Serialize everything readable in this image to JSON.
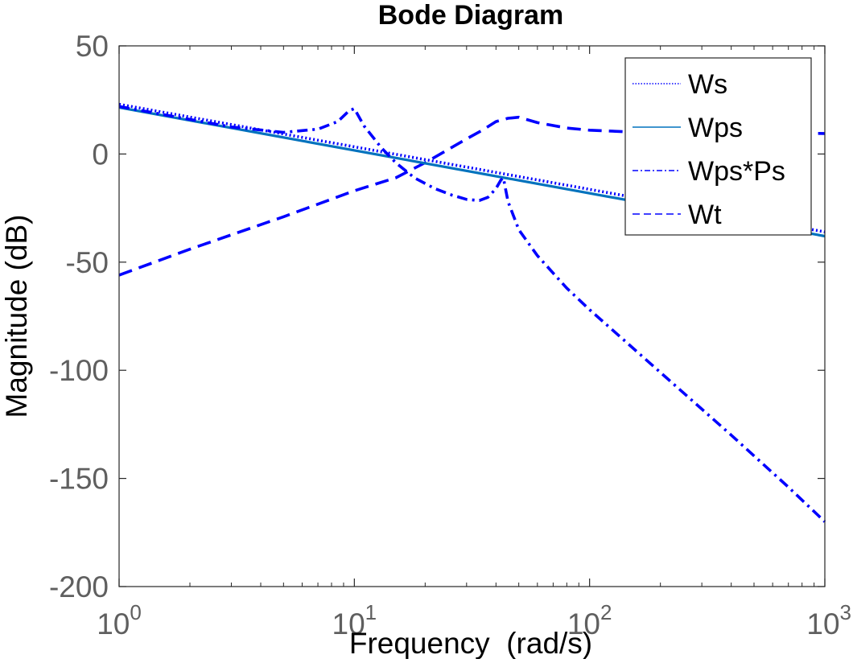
{
  "chart_data": {
    "type": "line",
    "title": "Bode Diagram",
    "xlabel": "Frequency  (rad/s)",
    "ylabel": "Magnitude (dB)",
    "xscale": "log",
    "xlim": [
      1,
      1000
    ],
    "ylim": [
      -200,
      50
    ],
    "grid": false,
    "legend_position": "top-right",
    "x_ticks": [
      {
        "value": 1,
        "base": "10",
        "exp": "0"
      },
      {
        "value": 10,
        "base": "10",
        "exp": "1"
      },
      {
        "value": 100,
        "base": "10",
        "exp": "2"
      },
      {
        "value": 1000,
        "base": "10",
        "exp": "3"
      }
    ],
    "y_ticks": [
      {
        "value": 50,
        "label": "50"
      },
      {
        "value": 0,
        "label": "0"
      },
      {
        "value": -50,
        "label": "-50"
      },
      {
        "value": -100,
        "label": "-100"
      },
      {
        "value": -150,
        "label": "-150"
      },
      {
        "value": -200,
        "label": "-200"
      }
    ],
    "series": [
      {
        "name": "Ws",
        "color": "#0000ff",
        "style": "dotted",
        "x": [
          1,
          1000
        ],
        "y": [
          23,
          -36
        ]
      },
      {
        "name": "Wps",
        "color": "#0072bd",
        "style": "solid",
        "x": [
          1,
          1000
        ],
        "y": [
          21.5,
          -38
        ]
      },
      {
        "name": "Wps*Ps",
        "color": "#0000ff",
        "style": "dashdot",
        "x": [
          1,
          2,
          3,
          5,
          7,
          8.5,
          9.5,
          10,
          11,
          13,
          15,
          18,
          22,
          26,
          30,
          34,
          37,
          40,
          42,
          43,
          45,
          50,
          60,
          80,
          100,
          200,
          400,
          700,
          1000
        ],
        "y": [
          22,
          16,
          12.5,
          10,
          11.5,
          15,
          20,
          21,
          13,
          3,
          -4,
          -11,
          -16,
          -19,
          -21,
          -21.5,
          -20,
          -16,
          -12,
          -11,
          -22,
          -35,
          -47,
          -62,
          -72,
          -101,
          -130,
          -154,
          -170
        ]
      },
      {
        "name": "Wt",
        "color": "#0000ff",
        "style": "dashed",
        "x": [
          1,
          2,
          5,
          10,
          15,
          20,
          25,
          30,
          35,
          40,
          45,
          50,
          60,
          80,
          100,
          150,
          200,
          300,
          500,
          700,
          1000
        ],
        "y": [
          -56,
          -44,
          -29,
          -17,
          -11,
          -4,
          2,
          7,
          11,
          15,
          16.5,
          17,
          14.5,
          12,
          11,
          10.2,
          10,
          9.8,
          9.7,
          9.6,
          9.5
        ]
      }
    ]
  }
}
